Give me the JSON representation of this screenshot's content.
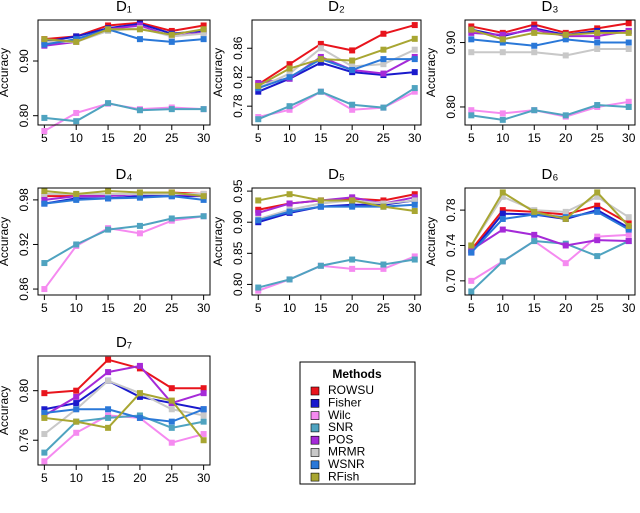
{
  "legend": {
    "title": "Methods"
  },
  "chart_data": [
    {
      "type": "line",
      "title": "D₁",
      "ylabel": "Accuracy",
      "x": [
        5,
        10,
        15,
        20,
        25,
        30
      ],
      "xlim": [
        4,
        31
      ],
      "xticks": [
        5,
        10,
        15,
        20,
        25,
        30
      ],
      "ylim": [
        0.783,
        0.975
      ],
      "yticks": [
        {
          "value": 0.8,
          "label": "0.80"
        },
        {
          "value": 0.9,
          "label": "0.90"
        }
      ],
      "series": [
        {
          "name": "ROWSU",
          "color": "#e8141c",
          "values": [
            0.94,
            0.945,
            0.965,
            0.97,
            0.955,
            0.965
          ]
        },
        {
          "name": "Fisher",
          "color": "#1a1acc",
          "values": [
            0.935,
            0.945,
            0.96,
            0.968,
            0.95,
            0.955
          ]
        },
        {
          "name": "Wilc",
          "color": "#f58af0",
          "values": [
            0.772,
            0.805,
            0.822,
            0.812,
            0.815,
            0.812
          ]
        },
        {
          "name": "SNR",
          "color": "#4fa3c0",
          "values": [
            0.796,
            0.79,
            0.823,
            0.81,
            0.812,
            0.812
          ]
        },
        {
          "name": "POS",
          "color": "#a52ad8",
          "values": [
            0.928,
            0.935,
            0.958,
            0.965,
            0.945,
            0.952
          ]
        },
        {
          "name": "MRMR",
          "color": "#c8c8c8",
          "values": [
            0.935,
            0.935,
            0.955,
            0.96,
            0.945,
            0.95
          ]
        },
        {
          "name": "WSNR",
          "color": "#2a78d8",
          "values": [
            0.93,
            0.94,
            0.958,
            0.94,
            0.935,
            0.94
          ]
        },
        {
          "name": "RFish",
          "color": "#a8a632",
          "values": [
            0.94,
            0.935,
            0.958,
            0.958,
            0.948,
            0.958
          ]
        }
      ]
    },
    {
      "type": "line",
      "title": "D₂",
      "ylabel": "Accuracy",
      "x": [
        5,
        10,
        15,
        20,
        25,
        30
      ],
      "xlim": [
        4,
        31
      ],
      "xticks": [
        5,
        10,
        15,
        20,
        25,
        30
      ],
      "ylim": [
        0.754,
        0.899
      ],
      "yticks": [
        {
          "value": 0.78,
          "label": "0.78"
        },
        {
          "value": 0.82,
          "label": "0.82"
        },
        {
          "value": 0.86,
          "label": "0.86"
        }
      ],
      "series": [
        {
          "name": "ROWSU",
          "color": "#e8141c",
          "values": [
            0.81,
            0.838,
            0.866,
            0.857,
            0.88,
            0.892
          ]
        },
        {
          "name": "Fisher",
          "color": "#1a1acc",
          "values": [
            0.8,
            0.818,
            0.84,
            0.827,
            0.823,
            0.827
          ]
        },
        {
          "name": "Wilc",
          "color": "#f58af0",
          "values": [
            0.765,
            0.775,
            0.8,
            0.775,
            0.778,
            0.8
          ]
        },
        {
          "name": "SNR",
          "color": "#4fa3c0",
          "values": [
            0.762,
            0.78,
            0.8,
            0.782,
            0.778,
            0.805
          ]
        },
        {
          "name": "POS",
          "color": "#a52ad8",
          "values": [
            0.812,
            0.818,
            0.848,
            0.83,
            0.825,
            0.848
          ]
        },
        {
          "name": "MRMR",
          "color": "#c8c8c8",
          "values": [
            0.805,
            0.825,
            0.86,
            0.835,
            0.838,
            0.858
          ]
        },
        {
          "name": "WSNR",
          "color": "#2a78d8",
          "values": [
            0.805,
            0.82,
            0.845,
            0.83,
            0.845,
            0.845
          ]
        },
        {
          "name": "RFish",
          "color": "#a8a632",
          "values": [
            0.808,
            0.832,
            0.845,
            0.843,
            0.858,
            0.873
          ]
        }
      ]
    },
    {
      "type": "line",
      "title": "D₃",
      "ylabel": "Accuracy",
      "x": [
        5,
        10,
        15,
        20,
        25,
        30
      ],
      "xlim": [
        4,
        31
      ],
      "xticks": [
        5,
        10,
        15,
        20,
        25,
        30
      ],
      "ylim": [
        0.772,
        0.935
      ],
      "yticks": [
        {
          "value": 0.8,
          "label": "0.80"
        },
        {
          "value": 0.9,
          "label": "0.90"
        }
      ],
      "series": [
        {
          "name": "ROWSU",
          "color": "#e8141c",
          "values": [
            0.925,
            0.915,
            0.928,
            0.915,
            0.922,
            0.93
          ]
        },
        {
          "name": "Fisher",
          "color": "#1a1acc",
          "values": [
            0.92,
            0.91,
            0.922,
            0.912,
            0.918,
            0.918
          ]
        },
        {
          "name": "Wilc",
          "color": "#f58af0",
          "values": [
            0.795,
            0.79,
            0.795,
            0.785,
            0.8,
            0.808
          ]
        },
        {
          "name": "SNR",
          "color": "#4fa3c0",
          "values": [
            0.787,
            0.78,
            0.795,
            0.787,
            0.803,
            0.8
          ]
        },
        {
          "name": "POS",
          "color": "#a52ad8",
          "values": [
            0.915,
            0.912,
            0.92,
            0.91,
            0.91,
            0.918
          ]
        },
        {
          "name": "MRMR",
          "color": "#c8c8c8",
          "values": [
            0.885,
            0.885,
            0.885,
            0.88,
            0.89,
            0.89
          ]
        },
        {
          "name": "WSNR",
          "color": "#2a78d8",
          "values": [
            0.905,
            0.9,
            0.895,
            0.905,
            0.9,
            0.9
          ]
        },
        {
          "name": "RFish",
          "color": "#a8a632",
          "values": [
            0.92,
            0.905,
            0.915,
            0.912,
            0.915,
            0.915
          ]
        }
      ]
    },
    {
      "type": "line",
      "title": "D₄",
      "ylabel": "Accuracy",
      "x": [
        5,
        10,
        15,
        20,
        25,
        30
      ],
      "xlim": [
        4,
        31
      ],
      "xticks": [
        5,
        10,
        15,
        20,
        25,
        30
      ],
      "ylim": [
        0.852,
        0.996
      ],
      "yticks": [
        {
          "value": 0.86,
          "label": "0.86"
        },
        {
          "value": 0.92,
          "label": "0.92"
        },
        {
          "value": 0.98,
          "label": "0.98"
        }
      ],
      "series": [
        {
          "name": "ROWSU",
          "color": "#e8141c",
          "values": [
            0.985,
            0.985,
            0.988,
            0.988,
            0.99,
            0.988
          ]
        },
        {
          "name": "Fisher",
          "color": "#1a1acc",
          "values": [
            0.975,
            0.982,
            0.982,
            0.985,
            0.985,
            0.985
          ]
        },
        {
          "name": "Wilc",
          "color": "#f58af0",
          "values": [
            0.86,
            0.918,
            0.942,
            0.935,
            0.952,
            0.958
          ]
        },
        {
          "name": "SNR",
          "color": "#4fa3c0",
          "values": [
            0.895,
            0.92,
            0.94,
            0.945,
            0.955,
            0.958
          ]
        },
        {
          "name": "POS",
          "color": "#a52ad8",
          "values": [
            0.98,
            0.985,
            0.985,
            0.988,
            0.988,
            0.985
          ]
        },
        {
          "name": "MRMR",
          "color": "#c8c8c8",
          "values": [
            0.988,
            0.988,
            0.988,
            0.988,
            0.988,
            0.988
          ]
        },
        {
          "name": "WSNR",
          "color": "#2a78d8",
          "values": [
            0.975,
            0.98,
            0.982,
            0.983,
            0.985,
            0.98
          ]
        },
        {
          "name": "RFish",
          "color": "#a8a632",
          "values": [
            0.992,
            0.988,
            0.992,
            0.99,
            0.99,
            0.985
          ]
        }
      ]
    },
    {
      "type": "line",
      "title": "D₅",
      "ylabel": "Accuracy",
      "x": [
        5,
        10,
        15,
        20,
        25,
        30
      ],
      "xlim": [
        4,
        31
      ],
      "xticks": [
        5,
        10,
        15,
        20,
        25,
        30
      ],
      "ylim": [
        0.783,
        0.955
      ],
      "yticks": [
        {
          "value": 0.8,
          "label": "0.80"
        },
        0.85,
        {
          "value": 0.9,
          "label": "0.90"
        },
        0.95
      ],
      "series": [
        {
          "name": "ROWSU",
          "color": "#e8141c",
          "values": [
            0.92,
            0.93,
            0.935,
            0.938,
            0.935,
            0.945
          ]
        },
        {
          "name": "Fisher",
          "color": "#1a1acc",
          "values": [
            0.9,
            0.915,
            0.925,
            0.928,
            0.928,
            0.935
          ]
        },
        {
          "name": "Wilc",
          "color": "#f58af0",
          "values": [
            0.79,
            0.808,
            0.83,
            0.825,
            0.825,
            0.845
          ]
        },
        {
          "name": "SNR",
          "color": "#4fa3c0",
          "values": [
            0.795,
            0.808,
            0.83,
            0.84,
            0.832,
            0.84
          ]
        },
        {
          "name": "POS",
          "color": "#a52ad8",
          "values": [
            0.915,
            0.93,
            0.935,
            0.94,
            0.93,
            0.94
          ]
        },
        {
          "name": "MRMR",
          "color": "#c8c8c8",
          "values": [
            0.905,
            0.92,
            0.93,
            0.935,
            0.93,
            0.935
          ]
        },
        {
          "name": "WSNR",
          "color": "#2a78d8",
          "values": [
            0.903,
            0.917,
            0.925,
            0.925,
            0.925,
            0.928
          ]
        },
        {
          "name": "RFish",
          "color": "#a8a632",
          "values": [
            0.935,
            0.945,
            0.935,
            0.935,
            0.925,
            0.918
          ]
        }
      ]
    },
    {
      "type": "line",
      "title": "D₆",
      "ylabel": "Accuracy",
      "x": [
        5,
        10,
        15,
        20,
        25,
        30
      ],
      "xlim": [
        4,
        31
      ],
      "xticks": [
        5,
        10,
        15,
        20,
        25,
        30
      ],
      "ylim": [
        0.684,
        0.805
      ],
      "yticks": [
        {
          "value": 0.7,
          "label": "0.70"
        },
        0.74,
        0.78
      ],
      "series": [
        {
          "name": "ROWSU",
          "color": "#e8141c",
          "values": [
            0.735,
            0.78,
            0.778,
            0.775,
            0.785,
            0.765
          ]
        },
        {
          "name": "Fisher",
          "color": "#1a1acc",
          "values": [
            0.732,
            0.776,
            0.775,
            0.77,
            0.78,
            0.76
          ]
        },
        {
          "name": "Wilc",
          "color": "#f58af0",
          "values": [
            0.7,
            0.722,
            0.745,
            0.72,
            0.75,
            0.752
          ]
        },
        {
          "name": "SNR",
          "color": "#4fa3c0",
          "values": [
            0.688,
            0.722,
            0.745,
            0.742,
            0.728,
            0.745
          ]
        },
        {
          "name": "POS",
          "color": "#a52ad8",
          "values": [
            0.735,
            0.758,
            0.752,
            0.74,
            0.746,
            0.745
          ]
        },
        {
          "name": "MRMR",
          "color": "#c8c8c8",
          "values": [
            0.74,
            0.795,
            0.78,
            0.778,
            0.795,
            0.772
          ]
        },
        {
          "name": "WSNR",
          "color": "#2a78d8",
          "values": [
            0.732,
            0.77,
            0.775,
            0.772,
            0.778,
            0.758
          ]
        },
        {
          "name": "RFish",
          "color": "#a8a632",
          "values": [
            0.74,
            0.8,
            0.778,
            0.77,
            0.8,
            0.762
          ]
        }
      ]
    },
    {
      "type": "line",
      "title": "D₇",
      "ylabel": "Accuracy",
      "x": [
        5,
        10,
        15,
        20,
        25,
        30
      ],
      "xlim": [
        4,
        31
      ],
      "xticks": [
        5,
        10,
        15,
        20,
        25,
        30
      ],
      "ylim": [
        0.74,
        0.828
      ],
      "yticks": [
        0.76,
        {
          "value": 0.8,
          "label": "0.80"
        }
      ],
      "series": [
        {
          "name": "ROWSU",
          "color": "#e8141c",
          "values": [
            0.798,
            0.8,
            0.825,
            0.818,
            0.802,
            0.802
          ]
        },
        {
          "name": "Fisher",
          "color": "#1a1acc",
          "values": [
            0.785,
            0.79,
            0.808,
            0.795,
            0.79,
            0.785
          ]
        },
        {
          "name": "Wilc",
          "color": "#f58af0",
          "values": [
            0.743,
            0.766,
            0.78,
            0.778,
            0.758,
            0.765
          ]
        },
        {
          "name": "SNR",
          "color": "#4fa3c0",
          "values": [
            0.75,
            0.775,
            0.778,
            0.78,
            0.77,
            0.775
          ]
        },
        {
          "name": "POS",
          "color": "#a52ad8",
          "values": [
            0.78,
            0.795,
            0.815,
            0.82,
            0.79,
            0.798
          ]
        },
        {
          "name": "MRMR",
          "color": "#c8c8c8",
          "values": [
            0.765,
            0.785,
            0.808,
            0.798,
            0.785,
            0.78
          ]
        },
        {
          "name": "WSNR",
          "color": "#2a78d8",
          "values": [
            0.782,
            0.785,
            0.785,
            0.778,
            0.775,
            0.785
          ]
        },
        {
          "name": "RFish",
          "color": "#a8a632",
          "values": [
            0.778,
            0.775,
            0.77,
            0.798,
            0.792,
            0.76
          ]
        }
      ]
    }
  ]
}
